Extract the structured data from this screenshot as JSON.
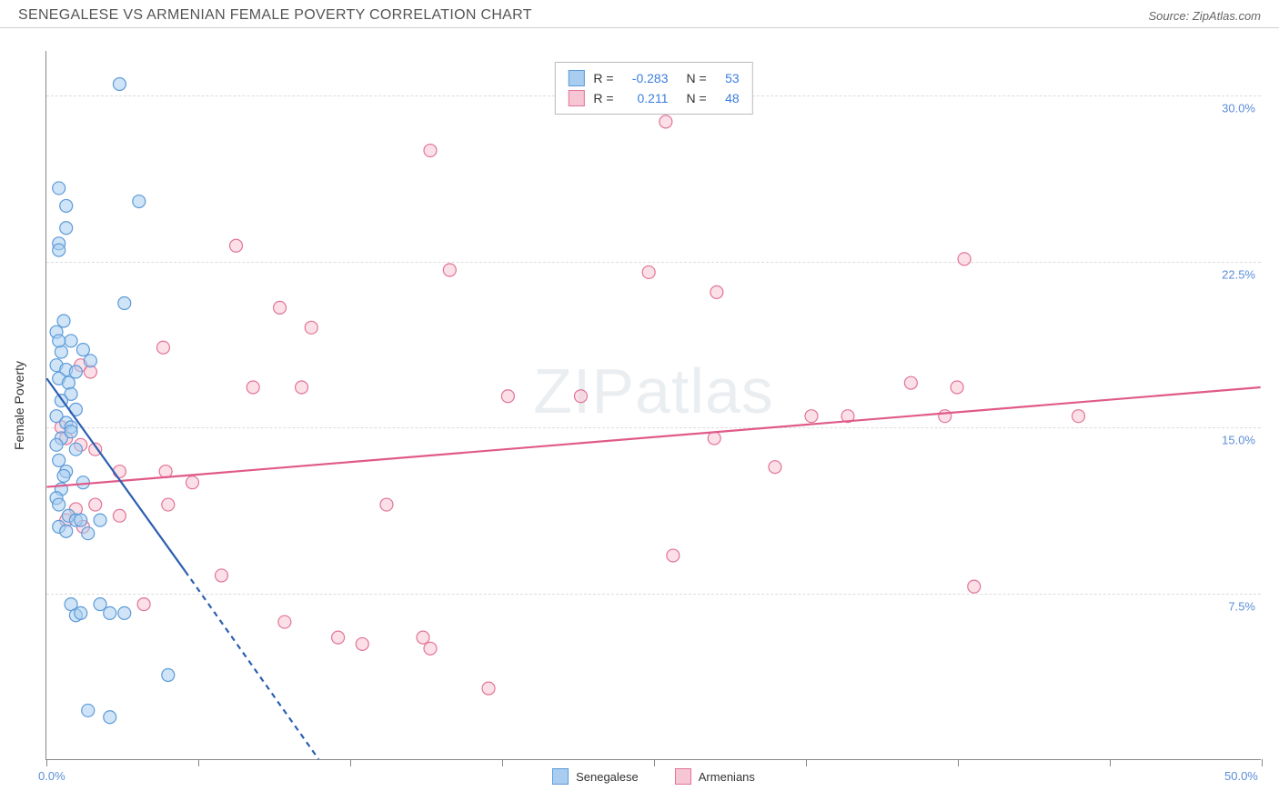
{
  "title": "SENEGALESE VS ARMENIAN FEMALE POVERTY CORRELATION CHART",
  "source_label": "Source: ZipAtlas.com",
  "y_axis_title": "Female Poverty",
  "watermark": "ZIPatlas",
  "colors": {
    "series_a_fill": "#a9cdf0",
    "series_a_stroke": "#5c9bd8",
    "series_b_fill": "#f7c6d4",
    "series_b_stroke": "#e27498",
    "trend_a": "#2b5fb0",
    "trend_b": "#e05a8a",
    "gridline": "#dcdcdc",
    "axis": "#888888",
    "tick_label": "#5b8dd9",
    "value_label": "#3a7de0",
    "text": "#333333",
    "background": "#ffffff"
  },
  "chart": {
    "type": "scatter",
    "xlim": [
      0,
      50
    ],
    "ylim": [
      0,
      32
    ],
    "y_gridlines": [
      7.5,
      15.0,
      22.5,
      30.0
    ],
    "y_tick_labels": [
      "7.5%",
      "15.0%",
      "22.5%",
      "30.0%"
    ],
    "x_ticks": [
      0,
      12.5,
      25,
      37.5,
      50
    ],
    "x_tick_minor": [
      6.25,
      18.75,
      31.25,
      43.75
    ],
    "x_min_label": "0.0%",
    "x_max_label": "50.0%",
    "marker_radius": 7,
    "marker_stroke_width": 1.2,
    "marker_fill_opacity": 0.55,
    "trend_line_width": 2.2
  },
  "correlation_box": {
    "rows": [
      {
        "swatch": "a",
        "r_label": "R =",
        "r_value": "-0.283",
        "n_label": "N =",
        "n_value": "53"
      },
      {
        "swatch": "b",
        "r_label": "R =",
        "r_value": "0.211",
        "n_label": "N =",
        "n_value": "48"
      }
    ]
  },
  "footer_legend": [
    {
      "swatch": "a",
      "label": "Senegalese"
    },
    {
      "swatch": "b",
      "label": "Armenians"
    }
  ],
  "trend_lines": {
    "a_solid": {
      "x1": 0.0,
      "y1": 17.2,
      "x2": 5.7,
      "y2": 8.5
    },
    "a_dashed": {
      "x1": 5.7,
      "y1": 8.5,
      "x2": 11.2,
      "y2": 0.0
    },
    "b": {
      "x1": 0.0,
      "y1": 12.3,
      "x2": 50.0,
      "y2": 16.8
    }
  },
  "series_a_points": [
    [
      3.0,
      30.5
    ],
    [
      0.5,
      25.8
    ],
    [
      0.8,
      25.0
    ],
    [
      3.8,
      25.2
    ],
    [
      0.8,
      24.0
    ],
    [
      0.5,
      23.3
    ],
    [
      0.5,
      23.0
    ],
    [
      3.2,
      20.6
    ],
    [
      0.4,
      19.3
    ],
    [
      1.0,
      18.9
    ],
    [
      0.6,
      18.4
    ],
    [
      1.8,
      18.0
    ],
    [
      0.4,
      17.8
    ],
    [
      0.8,
      17.6
    ],
    [
      1.2,
      17.5
    ],
    [
      0.5,
      17.2
    ],
    [
      0.9,
      17.0
    ],
    [
      1.0,
      16.5
    ],
    [
      0.6,
      16.2
    ],
    [
      1.2,
      15.8
    ],
    [
      0.4,
      15.5
    ],
    [
      0.8,
      15.2
    ],
    [
      1.0,
      15.0
    ],
    [
      0.6,
      14.5
    ],
    [
      0.4,
      14.2
    ],
    [
      1.2,
      14.0
    ],
    [
      0.5,
      13.5
    ],
    [
      0.8,
      13.0
    ],
    [
      1.5,
      12.5
    ],
    [
      0.6,
      12.2
    ],
    [
      0.4,
      11.8
    ],
    [
      0.9,
      11.0
    ],
    [
      1.2,
      10.8
    ],
    [
      2.2,
      10.8
    ],
    [
      0.5,
      10.5
    ],
    [
      0.8,
      10.3
    ],
    [
      1.4,
      10.8
    ],
    [
      1.7,
      10.2
    ],
    [
      1.0,
      7.0
    ],
    [
      2.2,
      7.0
    ],
    [
      1.2,
      6.5
    ],
    [
      1.4,
      6.6
    ],
    [
      2.6,
      6.6
    ],
    [
      3.2,
      6.6
    ],
    [
      5.0,
      3.8
    ],
    [
      1.7,
      2.2
    ],
    [
      2.6,
      1.9
    ],
    [
      0.5,
      18.9
    ],
    [
      0.7,
      19.8
    ],
    [
      1.0,
      14.8
    ],
    [
      0.7,
      12.8
    ],
    [
      0.5,
      11.5
    ],
    [
      1.5,
      18.5
    ]
  ],
  "series_b_points": [
    [
      25.5,
      28.8
    ],
    [
      15.8,
      27.5
    ],
    [
      7.8,
      23.2
    ],
    [
      16.6,
      22.1
    ],
    [
      24.8,
      22.0
    ],
    [
      27.6,
      21.1
    ],
    [
      37.8,
      22.6
    ],
    [
      9.6,
      20.4
    ],
    [
      10.9,
      19.5
    ],
    [
      4.8,
      18.6
    ],
    [
      1.4,
      17.8
    ],
    [
      1.8,
      17.5
    ],
    [
      8.5,
      16.8
    ],
    [
      10.5,
      16.8
    ],
    [
      19.0,
      16.4
    ],
    [
      22.0,
      16.4
    ],
    [
      35.6,
      17.0
    ],
    [
      37.5,
      16.8
    ],
    [
      31.5,
      15.5
    ],
    [
      33.0,
      15.5
    ],
    [
      37.0,
      15.5
    ],
    [
      42.5,
      15.5
    ],
    [
      27.5,
      14.5
    ],
    [
      30.0,
      13.2
    ],
    [
      0.6,
      15.0
    ],
    [
      0.8,
      14.5
    ],
    [
      1.4,
      14.2
    ],
    [
      2.0,
      14.0
    ],
    [
      3.0,
      13.0
    ],
    [
      4.9,
      13.0
    ],
    [
      6.0,
      12.5
    ],
    [
      1.2,
      11.3
    ],
    [
      2.0,
      11.5
    ],
    [
      3.0,
      11.0
    ],
    [
      5.0,
      11.5
    ],
    [
      14.0,
      11.5
    ],
    [
      0.8,
      10.8
    ],
    [
      1.5,
      10.5
    ],
    [
      25.8,
      9.2
    ],
    [
      7.2,
      8.3
    ],
    [
      38.2,
      7.8
    ],
    [
      4.0,
      7.0
    ],
    [
      9.8,
      6.2
    ],
    [
      12.0,
      5.5
    ],
    [
      13.0,
      5.2
    ],
    [
      15.5,
      5.5
    ],
    [
      15.8,
      5.0
    ],
    [
      18.2,
      3.2
    ]
  ]
}
